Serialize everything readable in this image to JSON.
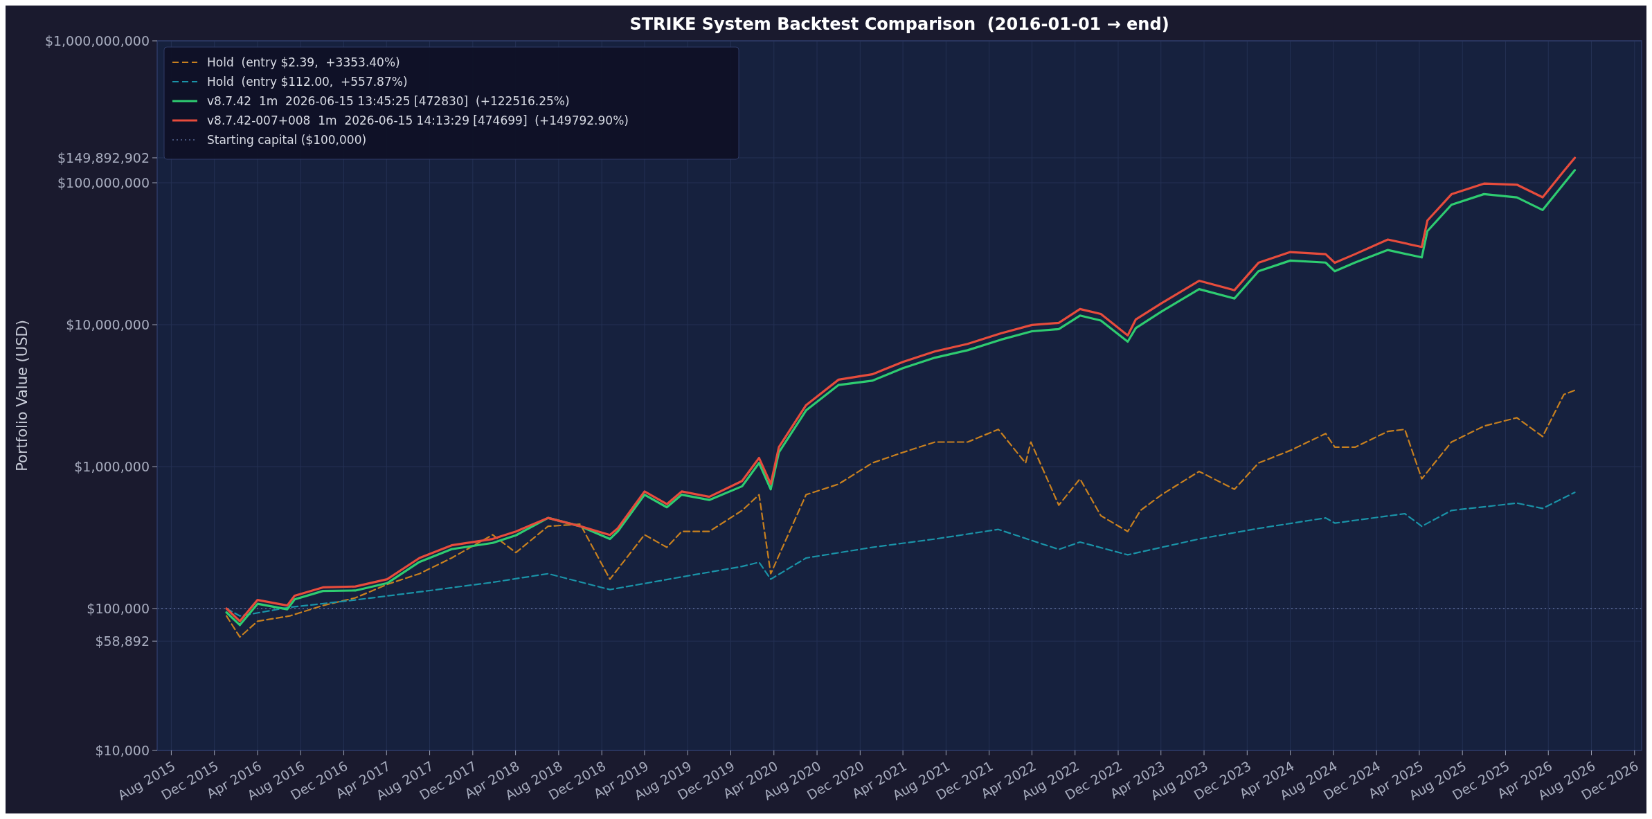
{
  "chart_data": {
    "type": "line",
    "title": "STRIKE System Backtest Comparison  (2016-01-01 → end)",
    "ylabel": "Portfolio Value (USD)",
    "log": true,
    "grid": true,
    "legend": "top left",
    "xlim": [
      "2015-06-22",
      "2026-12-21"
    ],
    "xticks": [
      {
        "value": "2015-08",
        "label": "Aug 2015"
      },
      {
        "value": "2015-12",
        "label": "Dec 2015"
      },
      {
        "value": "2016-04",
        "label": "Apr 2016"
      },
      {
        "value": "2016-08",
        "label": "Aug 2016"
      },
      {
        "value": "2016-12",
        "label": "Dec 2016"
      },
      {
        "value": "2017-04",
        "label": "Apr 2017"
      },
      {
        "value": "2017-08",
        "label": "Aug 2017"
      },
      {
        "value": "2017-12",
        "label": "Dec 2017"
      },
      {
        "value": "2018-04",
        "label": "Apr 2018"
      },
      {
        "value": "2018-08",
        "label": "Aug 2018"
      },
      {
        "value": "2018-12",
        "label": "Dec 2018"
      },
      {
        "value": "2019-04",
        "label": "Apr 2019"
      },
      {
        "value": "2019-08",
        "label": "Aug 2019"
      },
      {
        "value": "2019-12",
        "label": "Dec 2019"
      },
      {
        "value": "2020-04",
        "label": "Apr 2020"
      },
      {
        "value": "2020-08",
        "label": "Aug 2020"
      },
      {
        "value": "2020-12",
        "label": "Dec 2020"
      },
      {
        "value": "2021-04",
        "label": "Apr 2021"
      },
      {
        "value": "2021-08",
        "label": "Aug 2021"
      },
      {
        "value": "2021-12",
        "label": "Dec 2021"
      },
      {
        "value": "2022-04",
        "label": "Apr 2022"
      },
      {
        "value": "2022-08",
        "label": "Aug 2022"
      },
      {
        "value": "2022-12",
        "label": "Dec 2022"
      },
      {
        "value": "2023-04",
        "label": "Apr 2023"
      },
      {
        "value": "2023-08",
        "label": "Aug 2023"
      },
      {
        "value": "2023-12",
        "label": "Dec 2023"
      },
      {
        "value": "2024-04",
        "label": "Apr 2024"
      },
      {
        "value": "2024-08",
        "label": "Aug 2024"
      },
      {
        "value": "2024-12",
        "label": "Dec 2024"
      },
      {
        "value": "2025-04",
        "label": "Apr 2025"
      },
      {
        "value": "2025-08",
        "label": "Aug 2025"
      },
      {
        "value": "2025-12",
        "label": "Dec 2025"
      },
      {
        "value": "2026-04",
        "label": "Apr 2026"
      },
      {
        "value": "2026-08",
        "label": "Aug 2026"
      },
      {
        "value": "2026-12",
        "label": "Dec 2026"
      }
    ],
    "ylim": [
      10000,
      1000000000
    ],
    "yticks": [
      {
        "value": 10000,
        "label": "$10,000"
      },
      {
        "value": 58892,
        "label": "$58,892"
      },
      {
        "value": 100000,
        "label": "$100,000"
      },
      {
        "value": 1000000,
        "label": "$1,000,000"
      },
      {
        "value": 10000000,
        "label": "$10,000,000"
      },
      {
        "value": 100000000,
        "label": "$100,000,000"
      },
      {
        "value": 149892902,
        "label": "$149,892,902"
      },
      {
        "value": 1000000000,
        "label": "$1,000,000,000"
      }
    ],
    "ref_lines": [
      {
        "axis": "y",
        "value": 100000,
        "label": "Starting capital ($100,000)",
        "color": "#5a6a95",
        "line_style": "dotted"
      }
    ],
    "series": [
      {
        "name": "Hold  (entry $2.39,  +3353.40%)",
        "color": "#c8801f",
        "line_style": "dashed",
        "x": [
          "2016-01-04",
          "2016-02-11",
          "2016-04-01",
          "2016-07-01",
          "2016-10-03",
          "2017-01-03",
          "2017-04-03",
          "2017-07-03",
          "2017-10-02",
          "2018-01-26",
          "2018-04-02",
          "2018-07-02",
          "2018-10-01",
          "2018-12-24",
          "2019-04-01",
          "2019-06-03",
          "2019-07-15",
          "2019-10-01",
          "2020-01-02",
          "2020-02-19",
          "2020-03-23",
          "2020-07-01",
          "2020-10-01",
          "2021-01-04",
          "2021-04-01",
          "2021-07-01",
          "2021-10-01",
          "2021-12-27",
          "2022-03-14",
          "2022-03-29",
          "2022-06-16",
          "2022-08-15",
          "2022-10-13",
          "2022-12-28",
          "2023-02-02",
          "2023-04-03",
          "2023-07-18",
          "2023-10-26",
          "2024-01-02",
          "2024-04-01",
          "2024-07-10",
          "2024-08-05",
          "2024-10-01",
          "2025-01-02",
          "2025-02-19",
          "2025-04-08",
          "2025-07-01",
          "2025-10-01",
          "2026-01-02",
          "2026-03-16",
          "2026-05-15",
          "2026-06-15"
        ],
        "values": [
          88700,
          63000,
          81400,
          88700,
          105000,
          119000,
          148000,
          176000,
          227000,
          331000,
          248000,
          380000,
          393000,
          161000,
          331000,
          270000,
          349000,
          349000,
          491000,
          634000,
          176000,
          634000,
          753000,
          1060000,
          1260000,
          1490000,
          1490000,
          1830000,
          1060000,
          1490000,
          535000,
          820000,
          451000,
          349000,
          491000,
          634000,
          925000,
          692000,
          1060000,
          1300000,
          1710000,
          1370000,
          1370000,
          1770000,
          1830000,
          820000,
          1490000,
          1930000,
          2210000,
          1630000,
          3220000,
          3450000
        ]
      },
      {
        "name": "Hold  (entry $112.00,  +557.87%)",
        "color": "#1a93a8",
        "line_style": "dashed",
        "x": [
          "2016-01-04",
          "2016-02-11",
          "2016-07-01",
          "2017-01-03",
          "2017-07-03",
          "2018-01-26",
          "2018-07-02",
          "2018-12-24",
          "2019-07-15",
          "2020-01-02",
          "2020-02-19",
          "2020-03-23",
          "2020-07-01",
          "2021-01-04",
          "2021-07-01",
          "2021-12-27",
          "2022-06-16",
          "2022-08-15",
          "2022-12-28",
          "2023-07-18",
          "2024-01-02",
          "2024-07-10",
          "2024-08-05",
          "2025-02-19",
          "2025-04-08",
          "2025-07-01",
          "2026-01-02",
          "2026-03-16",
          "2026-06-15"
        ],
        "values": [
          100000,
          88700,
          102000,
          115000,
          131000,
          153000,
          176000,
          136000,
          167000,
          198000,
          212000,
          161000,
          227000,
          270000,
          309000,
          361000,
          261000,
          294000,
          239000,
          309000,
          367000,
          435000,
          400000,
          466000,
          380000,
          491000,
          553000,
          508000,
          658000
        ]
      },
      {
        "name": "v8.7.42  1m  2026-06-15 13:45:25 [472830]  (+122516.25%)",
        "color": "#2ecc71",
        "line_style": "solid",
        "x": [
          "2016-01-04",
          "2016-02-11",
          "2016-04-01",
          "2016-06-24",
          "2016-07-15",
          "2016-10-03",
          "2017-01-03",
          "2017-04-03",
          "2017-07-03",
          "2017-10-02",
          "2018-01-26",
          "2018-04-02",
          "2018-07-02",
          "2018-10-01",
          "2018-12-24",
          "2019-01-15",
          "2019-04-01",
          "2019-06-03",
          "2019-07-15",
          "2019-10-01",
          "2020-01-02",
          "2020-02-19",
          "2020-03-23",
          "2020-04-15",
          "2020-07-01",
          "2020-10-01",
          "2021-01-04",
          "2021-04-01",
          "2021-07-01",
          "2021-10-01",
          "2022-01-03",
          "2022-04-01",
          "2022-06-16",
          "2022-08-15",
          "2022-10-13",
          "2022-12-28",
          "2023-01-20",
          "2023-04-03",
          "2023-07-18",
          "2023-10-26",
          "2024-01-02",
          "2024-04-01",
          "2024-07-10",
          "2024-08-05",
          "2024-10-01",
          "2025-01-02",
          "2025-04-08",
          "2025-04-24",
          "2025-07-01",
          "2025-10-01",
          "2026-01-02",
          "2026-03-16",
          "2026-05-15",
          "2026-06-15"
        ],
        "values": [
          94000,
          76500,
          108000,
          98700,
          116000,
          133000,
          134000,
          151000,
          213000,
          262000,
          290000,
          328000,
          435000,
          380000,
          309000,
          349000,
          634000,
          517000,
          634000,
          582000,
          727000,
          1060000,
          692000,
          1260000,
          2490000,
          3760000,
          4030000,
          4940000,
          5860000,
          6610000,
          7840000,
          8990000,
          9300000,
          11600000,
          10700000,
          7590000,
          9470000,
          12400000,
          17800000,
          15300000,
          23800000,
          28300000,
          27400000,
          23800000,
          27400000,
          33600000,
          29800000,
          45700000,
          70000000,
          83200000,
          78900000,
          64300000,
          98600000,
          122600000
        ]
      },
      {
        "name": "v8.7.42-007+008  1m  2026-06-15 14:13:29 [474699]  (+149792.90%)",
        "color": "#e74c3c",
        "line_style": "solid",
        "x": [
          "2016-01-04",
          "2016-02-11",
          "2016-04-01",
          "2016-06-24",
          "2016-07-15",
          "2016-10-03",
          "2017-01-03",
          "2017-04-03",
          "2017-07-03",
          "2017-10-02",
          "2018-01-26",
          "2018-04-02",
          "2018-07-02",
          "2018-10-01",
          "2018-12-24",
          "2019-01-15",
          "2019-04-01",
          "2019-06-03",
          "2019-07-15",
          "2019-10-01",
          "2020-01-02",
          "2020-02-19",
          "2020-03-23",
          "2020-04-15",
          "2020-07-01",
          "2020-10-01",
          "2021-01-04",
          "2021-04-01",
          "2021-07-01",
          "2021-10-01",
          "2022-01-03",
          "2022-04-01",
          "2022-06-16",
          "2022-08-15",
          "2022-10-13",
          "2022-12-28",
          "2023-01-20",
          "2023-04-03",
          "2023-07-18",
          "2023-10-26",
          "2024-01-02",
          "2024-04-01",
          "2024-07-10",
          "2024-08-05",
          "2024-10-01",
          "2025-01-02",
          "2025-04-08",
          "2025-04-24",
          "2025-07-01",
          "2025-10-01",
          "2026-01-02",
          "2026-03-16",
          "2026-05-15",
          "2026-06-15"
        ],
        "values": [
          100000,
          81400,
          115000,
          105000,
          123000,
          141000,
          143000,
          161000,
          227000,
          279000,
          309000,
          349000,
          435000,
          380000,
          330000,
          367000,
          668000,
          544000,
          668000,
          613000,
          792000,
          1150000,
          754000,
          1370000,
          2710000,
          4100000,
          4470000,
          5470000,
          6490000,
          7320000,
          8690000,
          9960000,
          10300000,
          12900000,
          11900000,
          8410000,
          10900000,
          14200000,
          20400000,
          17500000,
          27300000,
          32500000,
          31400000,
          27300000,
          31400000,
          39800000,
          35300000,
          54200000,
          83000000,
          98700000,
          96900000,
          79000000,
          121000000,
          149900000
        ]
      }
    ]
  }
}
